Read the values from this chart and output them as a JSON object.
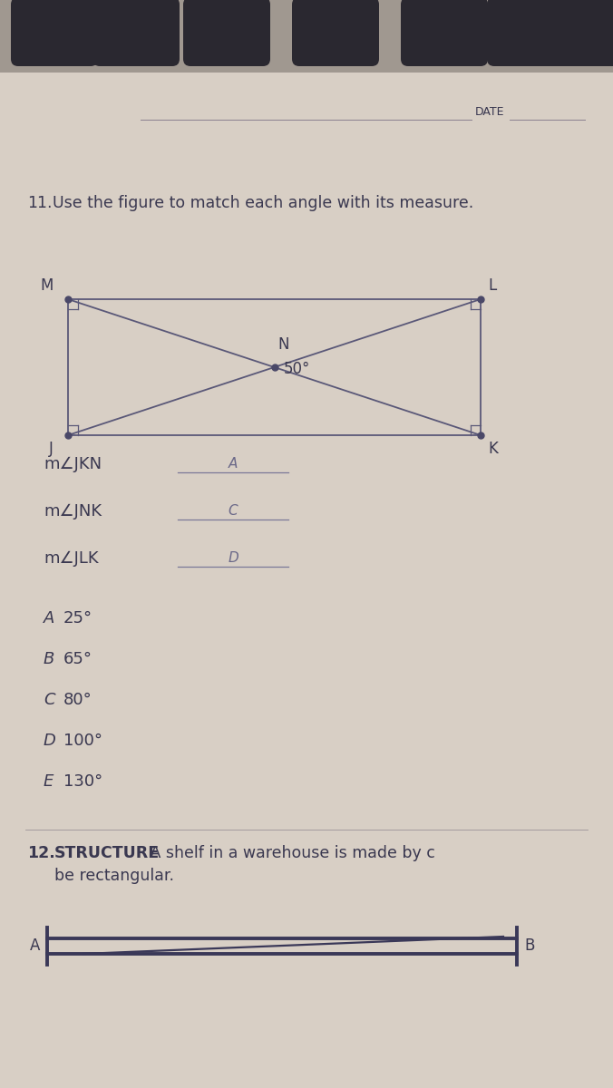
{
  "bg_color": "#c8bfb5",
  "page_color": "#d8cfc5",
  "tab_color": "#2a2830",
  "text_color": "#3a3850",
  "line_color": "#5a5878",
  "dot_color": "#4a4868",
  "date_label": "DATE",
  "problem11_num": "11.",
  "problem11_text": "Use the figure to match each angle with its measure.",
  "corner_labels": [
    "M",
    "L",
    "J",
    "K"
  ],
  "center_label": "N",
  "angle_label": "50°",
  "questions": [
    {
      "label": "m∠JKN",
      "answer": "A"
    },
    {
      "label": "m∠JNK",
      "answer": "C"
    },
    {
      "label": "m∠JLK",
      "answer": "D"
    }
  ],
  "choices": [
    {
      "letter": "A",
      "value": "25°"
    },
    {
      "letter": "B",
      "value": "65°"
    },
    {
      "letter": "C",
      "value": "80°"
    },
    {
      "letter": "D",
      "value": "100°"
    },
    {
      "letter": "E",
      "value": "130°"
    }
  ],
  "problem12_num": "12.",
  "problem12_bold": "STRUCTURE",
  "problem12_rest": " A shelf in a warehouse is made by c",
  "problem12_line2": "be rectangular.",
  "shelf_label_a": "A",
  "shelf_label_b": "B"
}
